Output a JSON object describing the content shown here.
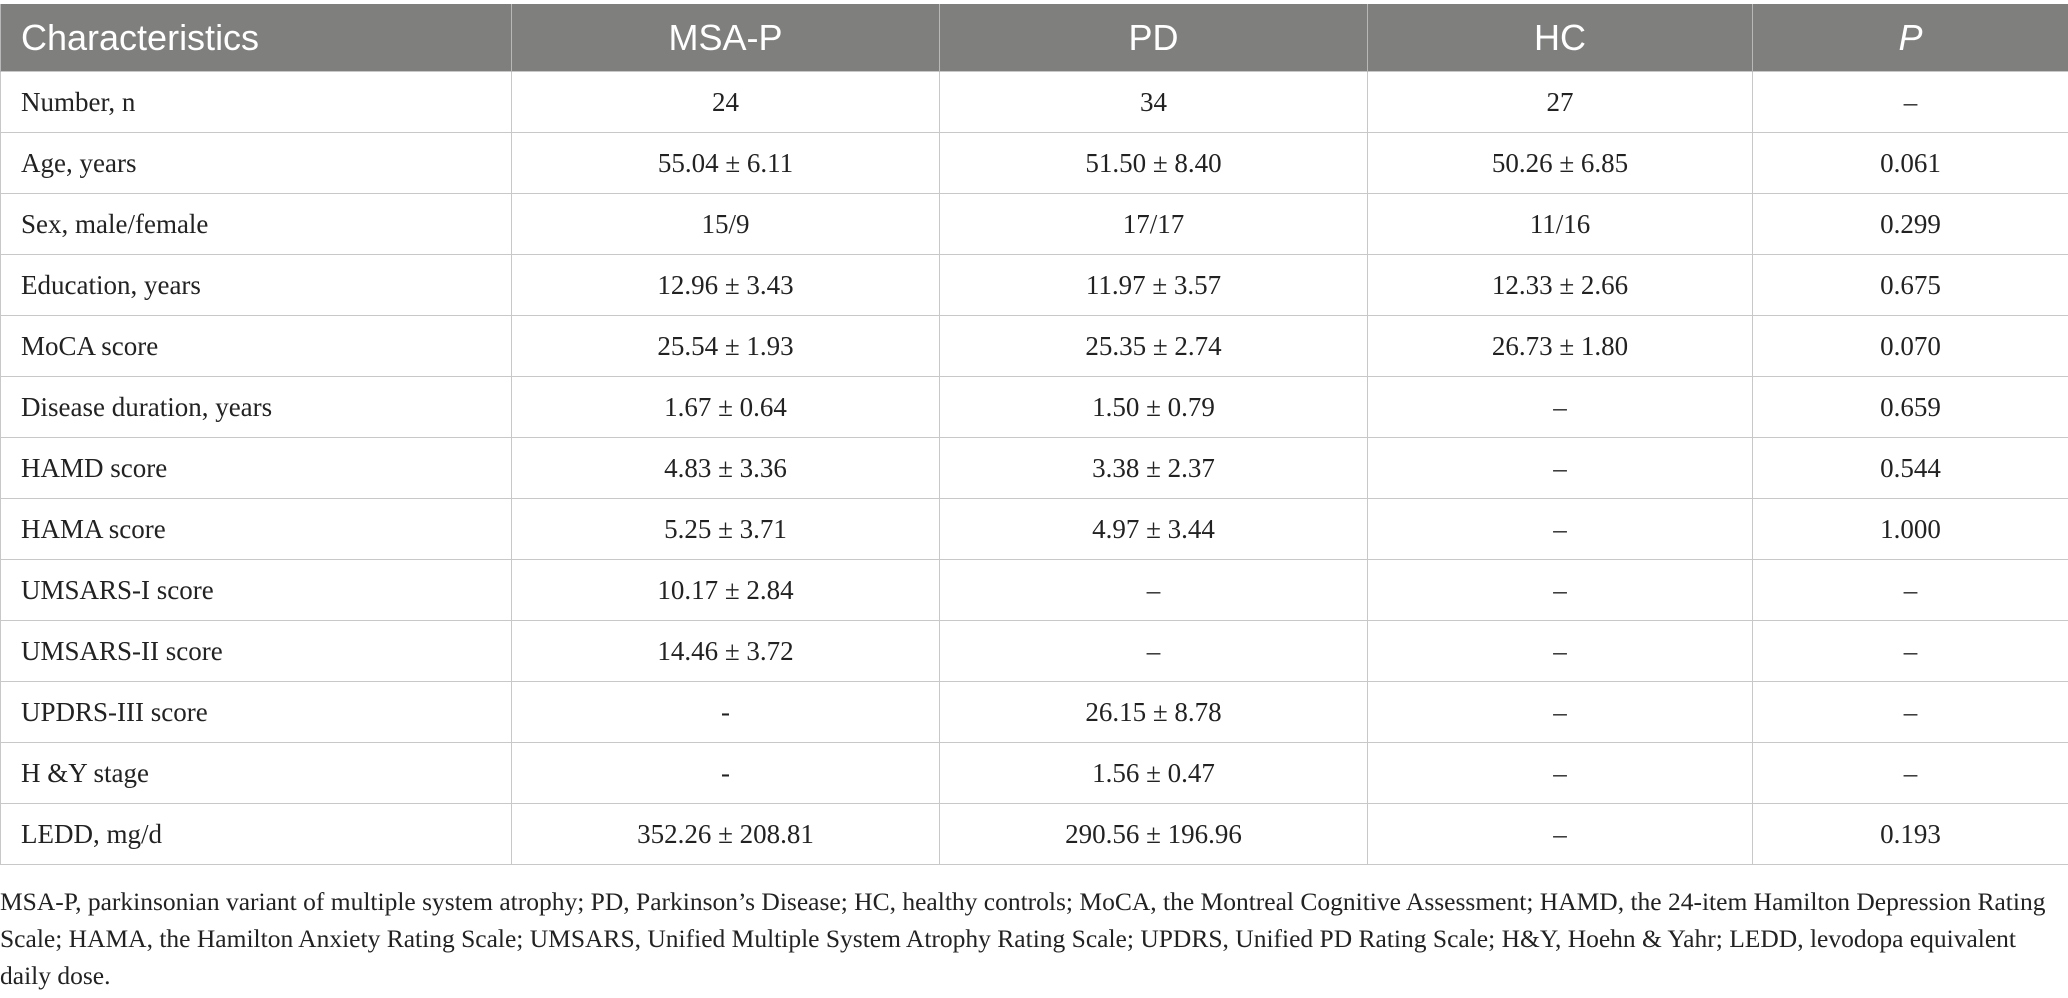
{
  "table": {
    "headers": [
      "Characteristics",
      "MSA-P",
      "PD",
      "HC",
      "P"
    ],
    "rows": [
      [
        "Number, n",
        "24",
        "34",
        "27",
        "–"
      ],
      [
        "Age, years",
        "55.04 ± 6.11",
        "51.50 ± 8.40",
        "50.26 ± 6.85",
        "0.061"
      ],
      [
        "Sex, male/female",
        "15/9",
        "17/17",
        "11/16",
        "0.299"
      ],
      [
        "Education, years",
        "12.96 ± 3.43",
        "11.97 ± 3.57",
        "12.33 ± 2.66",
        "0.675"
      ],
      [
        "MoCA score",
        "25.54 ± 1.93",
        "25.35 ± 2.74",
        "26.73 ± 1.80",
        "0.070"
      ],
      [
        "Disease duration, years",
        "1.67 ± 0.64",
        "1.50 ± 0.79",
        "–",
        "0.659"
      ],
      [
        "HAMD score",
        "4.83 ± 3.36",
        "3.38 ± 2.37",
        "–",
        "0.544"
      ],
      [
        "HAMA score",
        "5.25 ± 3.71",
        "4.97 ± 3.44",
        "–",
        "1.000"
      ],
      [
        "UMSARS-I score",
        "10.17 ± 2.84",
        "–",
        "–",
        "–"
      ],
      [
        "UMSARS-II score",
        "14.46 ± 3.72",
        "–",
        "–",
        "–"
      ],
      [
        "UPDRS-III score",
        "-",
        "26.15 ± 8.78",
        "–",
        "–"
      ],
      [
        "H &Y stage",
        "-",
        "1.56 ± 0.47",
        "–",
        "–"
      ],
      [
        "LEDD, mg/d",
        "352.26 ± 208.81",
        "290.56 ± 196.96",
        "–",
        "0.193"
      ]
    ]
  },
  "footnote": "MSA-P, parkinsonian variant of multiple system atrophy; PD, Parkinson’s Disease; HC, healthy controls; MoCA, the Montreal Cognitive Assessment; HAMD, the 24-item Hamilton Depression Rating Scale; HAMA, the Hamilton Anxiety Rating Scale; UMSARS, Unified Multiple System Atrophy Rating Scale; UPDRS, Unified PD Rating Scale; H&Y, Hoehn & Yahr; LEDD, levodopa equivalent daily dose."
}
